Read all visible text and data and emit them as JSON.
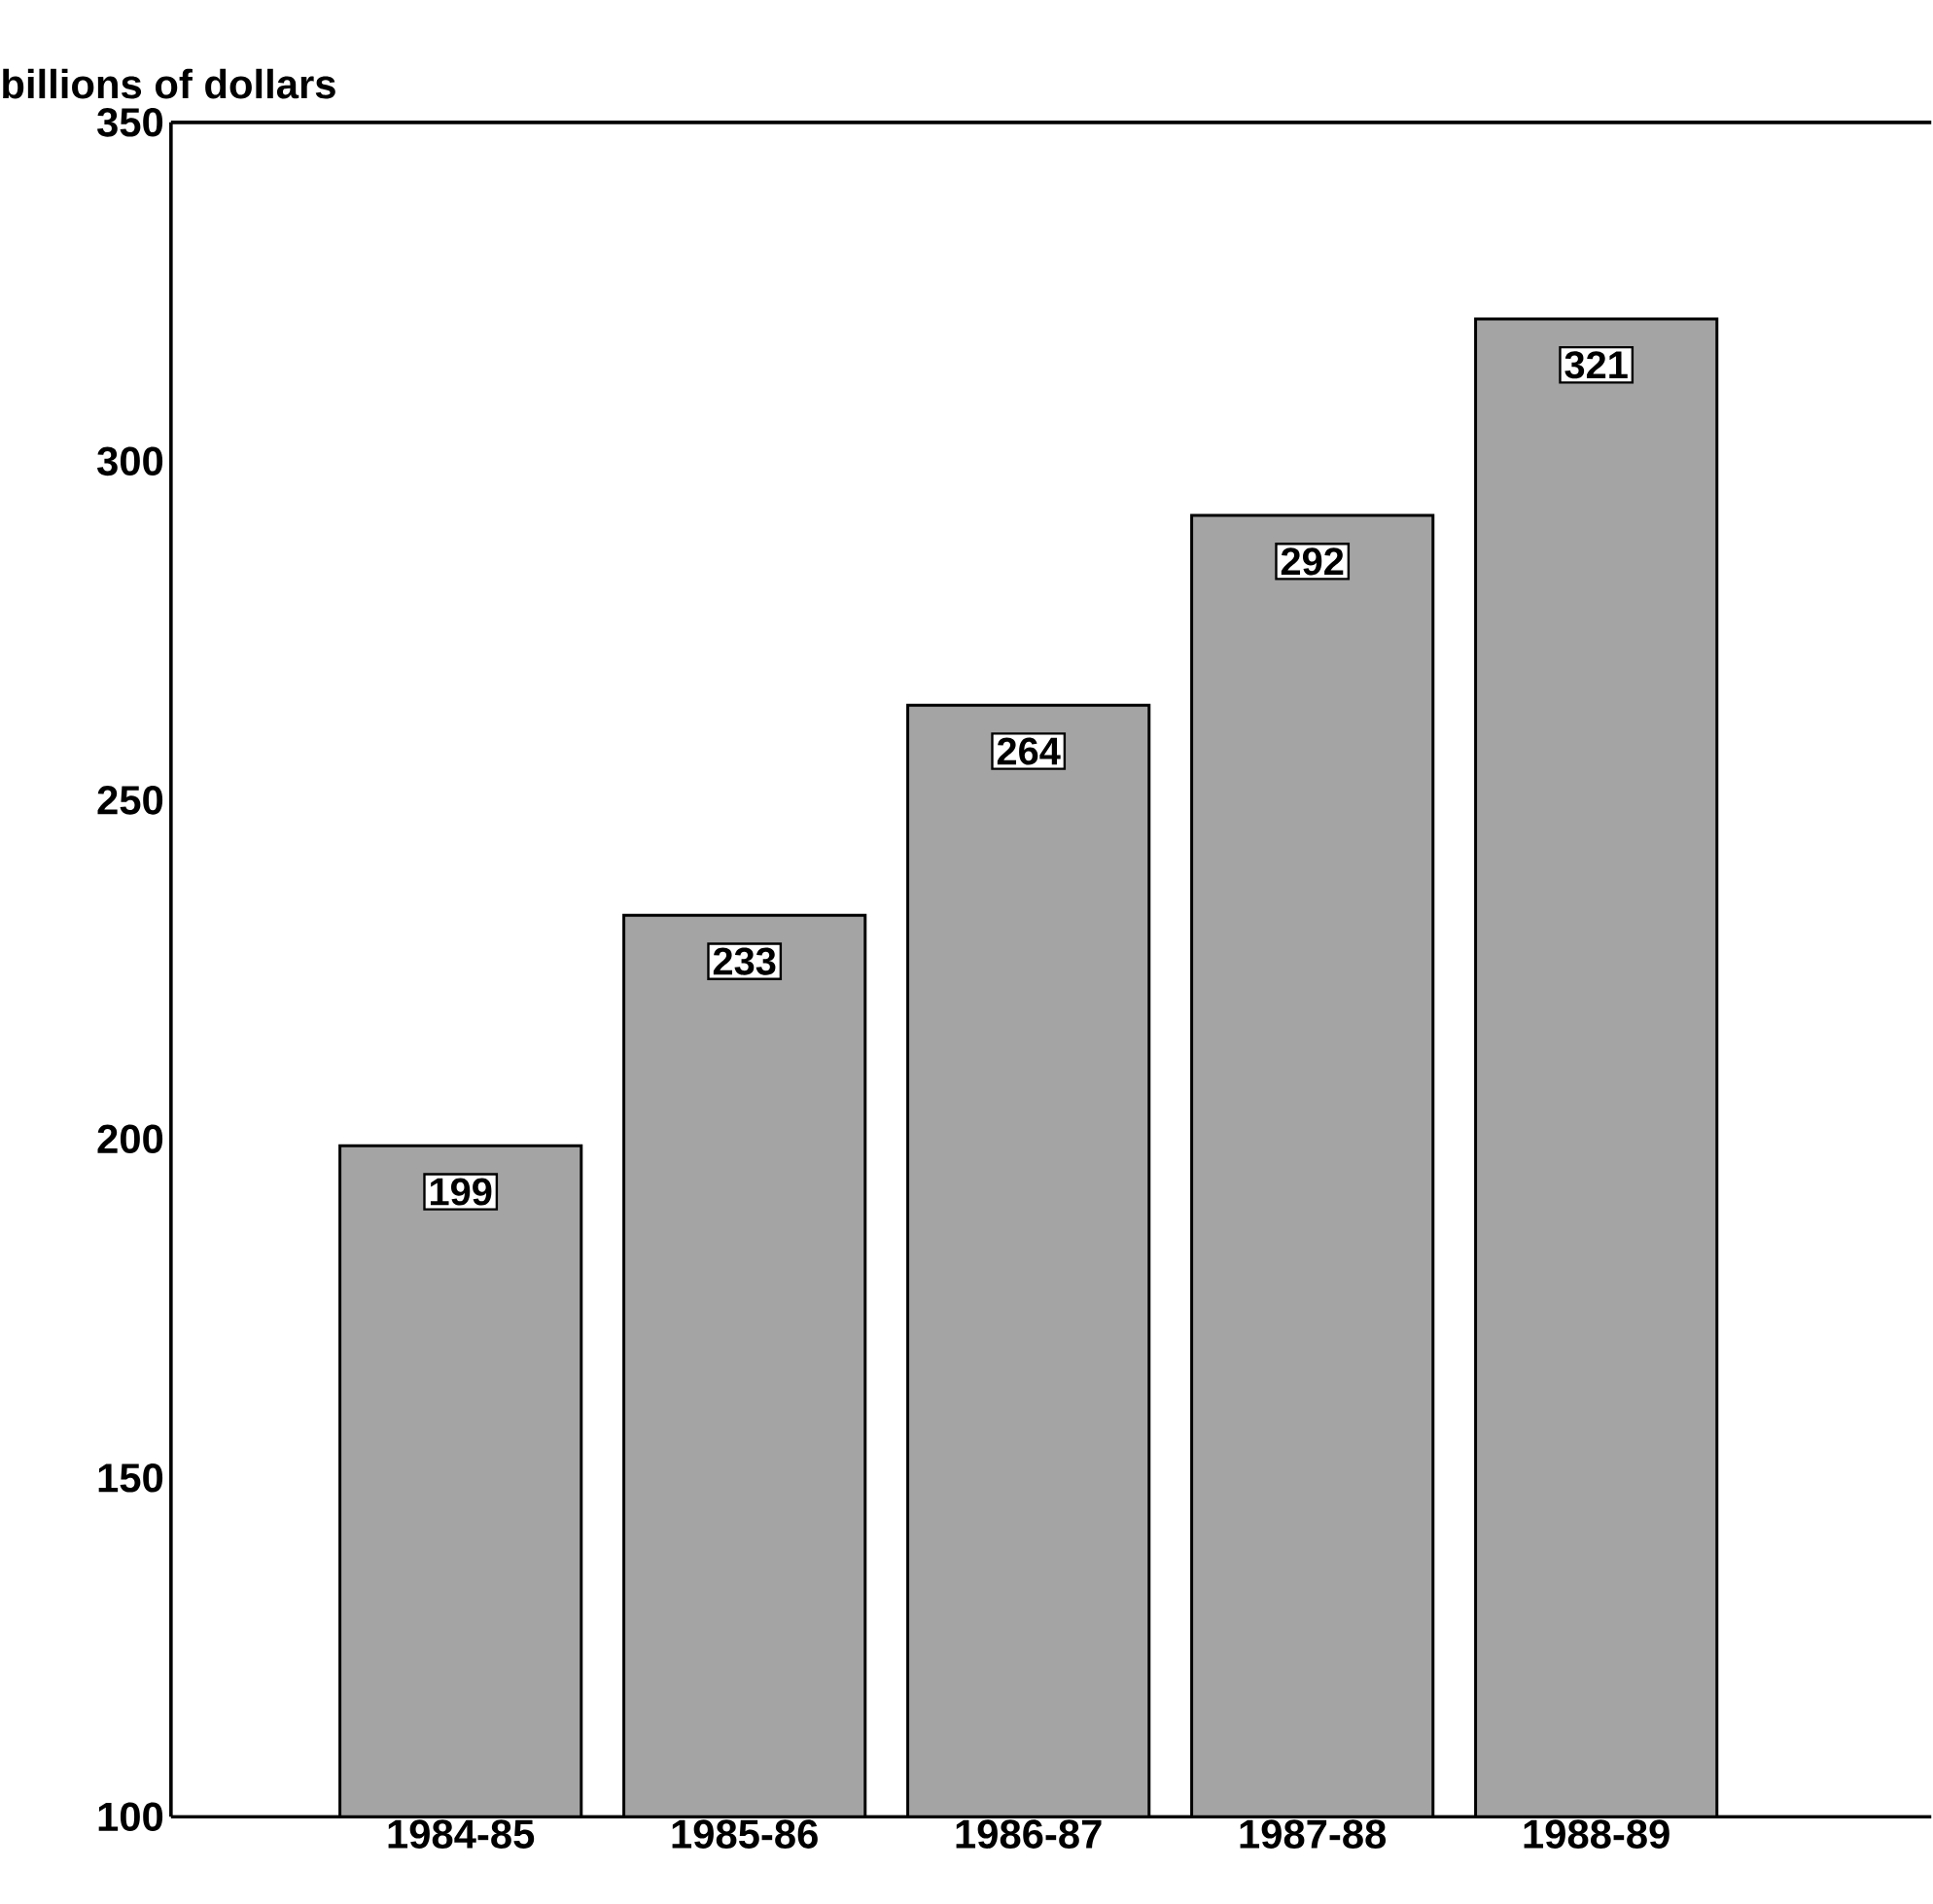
{
  "chart_data": {
    "type": "bar",
    "ylabel": "billions of dollars",
    "categories": [
      "1984-85",
      "1985-86",
      "1986-87",
      "1987-88",
      "1988-89"
    ],
    "values": [
      199,
      233,
      264,
      292,
      321
    ],
    "color": "#a4a4a4",
    "ylim": [
      100,
      350
    ],
    "yticks": [
      100,
      150,
      200,
      250,
      300,
      350
    ],
    "data_labels": true
  }
}
